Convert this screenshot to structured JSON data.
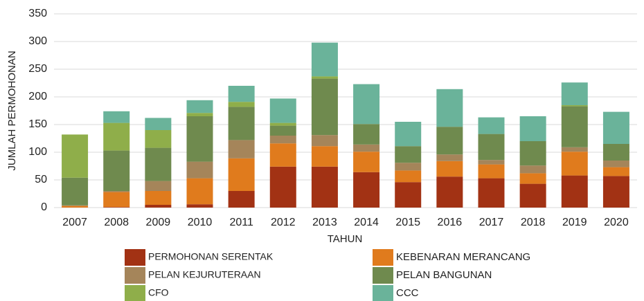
{
  "chart_data": {
    "type": "stacked_bar",
    "x_label": "TAHUN",
    "y_label": "JUMLAH PERMOHONAN",
    "categories": [
      "2007",
      "2008",
      "2009",
      "2010",
      "2011",
      "2012",
      "2013",
      "2014",
      "2015",
      "2016",
      "2017",
      "2018",
      "2019",
      "2020"
    ],
    "series": [
      {
        "name": "PERMOHONAN SERENTAK",
        "color": "#a23214",
        "values": [
          0,
          1,
          5,
          6,
          30,
          74,
          74,
          64,
          46,
          56,
          53,
          43,
          58,
          57
        ]
      },
      {
        "name": "KEBENARAN MERANCANG",
        "color": "#e07b1d",
        "values": [
          3,
          27,
          25,
          47,
          59,
          42,
          37,
          37,
          21,
          28,
          25,
          19,
          43,
          16
        ]
      },
      {
        "name": "PELAN KEJURUTERAAN",
        "color": "#a5855a",
        "values": [
          1,
          2,
          18,
          30,
          33,
          14,
          20,
          13,
          14,
          12,
          8,
          14,
          8,
          12
        ]
      },
      {
        "name": "PELAN BANGUNAN",
        "color": "#6f8a4e",
        "values": [
          50,
          73,
          60,
          82,
          60,
          18,
          102,
          37,
          30,
          50,
          47,
          44,
          74,
          30
        ]
      },
      {
        "name": "CFO",
        "color": "#8fae4a",
        "values": [
          78,
          50,
          32,
          6,
          9,
          5,
          4,
          0,
          0,
          0,
          0,
          0,
          2,
          0
        ]
      },
      {
        "name": "CCC",
        "color": "#6ab39a",
        "values": [
          0,
          21,
          22,
          23,
          29,
          44,
          61,
          72,
          44,
          68,
          30,
          45,
          41,
          58
        ]
      }
    ],
    "ylim": [
      0,
      350
    ],
    "yticks": [
      0,
      50,
      100,
      150,
      200,
      250,
      300,
      350
    ],
    "grid": true
  }
}
